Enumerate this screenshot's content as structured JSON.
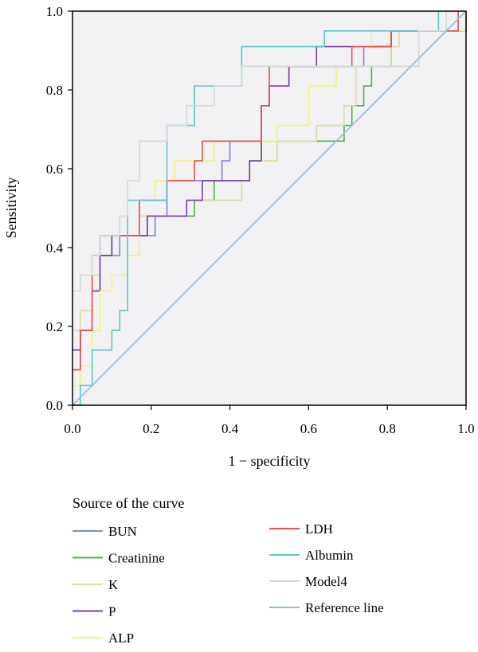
{
  "chart_data": {
    "type": "line",
    "title": "",
    "xlabel": "1 − specificity",
    "ylabel": "Sensitivity",
    "xlim": [
      0,
      1
    ],
    "ylim": [
      0,
      1
    ],
    "xticks": [
      "0.0",
      "0.2",
      "0.4",
      "0.6",
      "0.8",
      "1.0"
    ],
    "yticks": [
      "0.0",
      "0.2",
      "0.4",
      "0.6",
      "0.8",
      "1.0"
    ],
    "grid": false,
    "legend": {
      "title": "Source of the curve",
      "placement": "bottom"
    },
    "series": [
      {
        "name": "BUN",
        "color": "#7b88d6",
        "points": [
          [
            0,
            0.09
          ],
          [
            0.02,
            0.09
          ],
          [
            0.02,
            0.19
          ],
          [
            0.05,
            0.19
          ],
          [
            0.05,
            0.29
          ],
          [
            0.07,
            0.29
          ],
          [
            0.07,
            0.38
          ],
          [
            0.12,
            0.38
          ],
          [
            0.12,
            0.43
          ],
          [
            0.21,
            0.43
          ],
          [
            0.21,
            0.48
          ],
          [
            0.24,
            0.48
          ],
          [
            0.24,
            0.57
          ],
          [
            0.38,
            0.57
          ],
          [
            0.38,
            0.62
          ],
          [
            0.4,
            0.62
          ],
          [
            0.4,
            0.67
          ],
          [
            0.48,
            0.67
          ],
          [
            0.48,
            0.76
          ],
          [
            0.5,
            0.76
          ],
          [
            0.5,
            0.81
          ],
          [
            0.55,
            0.81
          ],
          [
            0.55,
            0.86
          ],
          [
            0.74,
            0.86
          ],
          [
            0.74,
            0.91
          ],
          [
            0.81,
            0.91
          ],
          [
            0.81,
            0.95
          ],
          [
            1,
            0.95
          ],
          [
            1,
            1
          ]
        ]
      },
      {
        "name": "Creatinine",
        "color": "#4fb34f",
        "points": [
          [
            0,
            0.14
          ],
          [
            0.02,
            0.14
          ],
          [
            0.02,
            0.19
          ],
          [
            0.05,
            0.19
          ],
          [
            0.05,
            0.29
          ],
          [
            0.07,
            0.29
          ],
          [
            0.07,
            0.38
          ],
          [
            0.1,
            0.38
          ],
          [
            0.1,
            0.43
          ],
          [
            0.19,
            0.43
          ],
          [
            0.19,
            0.48
          ],
          [
            0.31,
            0.48
          ],
          [
            0.31,
            0.52
          ],
          [
            0.36,
            0.52
          ],
          [
            0.36,
            0.57
          ],
          [
            0.45,
            0.57
          ],
          [
            0.45,
            0.62
          ],
          [
            0.48,
            0.62
          ],
          [
            0.48,
            0.67
          ],
          [
            0.69,
            0.67
          ],
          [
            0.69,
            0.71
          ],
          [
            0.71,
            0.71
          ],
          [
            0.71,
            0.76
          ],
          [
            0.74,
            0.76
          ],
          [
            0.74,
            0.81
          ],
          [
            0.76,
            0.81
          ],
          [
            0.76,
            0.86
          ],
          [
            0.81,
            0.86
          ],
          [
            0.81,
            0.95
          ],
          [
            1,
            0.95
          ],
          [
            1,
            1
          ]
        ]
      },
      {
        "name": "K",
        "color": "#d8dd9a",
        "points": [
          [
            0,
            0.19
          ],
          [
            0.02,
            0.19
          ],
          [
            0.02,
            0.24
          ],
          [
            0.05,
            0.24
          ],
          [
            0.05,
            0.33
          ],
          [
            0.07,
            0.33
          ],
          [
            0.07,
            0.43
          ],
          [
            0.17,
            0.43
          ],
          [
            0.17,
            0.48
          ],
          [
            0.29,
            0.48
          ],
          [
            0.29,
            0.52
          ],
          [
            0.43,
            0.52
          ],
          [
            0.43,
            0.57
          ],
          [
            0.45,
            0.57
          ],
          [
            0.45,
            0.62
          ],
          [
            0.52,
            0.62
          ],
          [
            0.52,
            0.67
          ],
          [
            0.62,
            0.67
          ],
          [
            0.62,
            0.71
          ],
          [
            0.69,
            0.71
          ],
          [
            0.69,
            0.76
          ],
          [
            0.72,
            0.76
          ],
          [
            0.72,
            0.86
          ],
          [
            0.81,
            0.86
          ],
          [
            0.81,
            0.91
          ],
          [
            0.83,
            0.91
          ],
          [
            0.83,
            0.95
          ],
          [
            1,
            0.95
          ],
          [
            1,
            1
          ]
        ]
      },
      {
        "name": "P",
        "color": "#7e3fa0",
        "points": [
          [
            0,
            0.14
          ],
          [
            0.02,
            0.14
          ],
          [
            0.02,
            0.19
          ],
          [
            0.05,
            0.19
          ],
          [
            0.05,
            0.29
          ],
          [
            0.07,
            0.29
          ],
          [
            0.07,
            0.38
          ],
          [
            0.1,
            0.38
          ],
          [
            0.1,
            0.43
          ],
          [
            0.19,
            0.43
          ],
          [
            0.19,
            0.48
          ],
          [
            0.29,
            0.48
          ],
          [
            0.29,
            0.52
          ],
          [
            0.33,
            0.52
          ],
          [
            0.33,
            0.57
          ],
          [
            0.45,
            0.57
          ],
          [
            0.45,
            0.62
          ],
          [
            0.48,
            0.62
          ],
          [
            0.48,
            0.76
          ],
          [
            0.5,
            0.76
          ],
          [
            0.5,
            0.81
          ],
          [
            0.55,
            0.81
          ],
          [
            0.55,
            0.86
          ],
          [
            0.62,
            0.86
          ],
          [
            0.62,
            0.91
          ],
          [
            0.81,
            0.91
          ],
          [
            0.81,
            0.95
          ],
          [
            1,
            0.95
          ],
          [
            1,
            1
          ]
        ]
      },
      {
        "name": "ALP",
        "color": "#f5f07a",
        "points": [
          [
            0,
            0.05
          ],
          [
            0.02,
            0.05
          ],
          [
            0.02,
            0.1
          ],
          [
            0.05,
            0.1
          ],
          [
            0.05,
            0.19
          ],
          [
            0.07,
            0.19
          ],
          [
            0.07,
            0.29
          ],
          [
            0.1,
            0.29
          ],
          [
            0.1,
            0.33
          ],
          [
            0.14,
            0.33
          ],
          [
            0.14,
            0.38
          ],
          [
            0.17,
            0.38
          ],
          [
            0.17,
            0.52
          ],
          [
            0.21,
            0.52
          ],
          [
            0.21,
            0.57
          ],
          [
            0.26,
            0.57
          ],
          [
            0.26,
            0.62
          ],
          [
            0.36,
            0.62
          ],
          [
            0.36,
            0.67
          ],
          [
            0.52,
            0.67
          ],
          [
            0.52,
            0.71
          ],
          [
            0.6,
            0.71
          ],
          [
            0.6,
            0.81
          ],
          [
            0.67,
            0.81
          ],
          [
            0.67,
            0.86
          ],
          [
            0.71,
            0.86
          ],
          [
            0.71,
            0.91
          ],
          [
            0.76,
            0.91
          ],
          [
            0.76,
            0.95
          ],
          [
            1,
            0.95
          ],
          [
            1,
            1
          ]
        ]
      },
      {
        "name": "LDH",
        "color": "#e8534f",
        "points": [
          [
            0,
            0.09
          ],
          [
            0.02,
            0.09
          ],
          [
            0.02,
            0.19
          ],
          [
            0.05,
            0.19
          ],
          [
            0.05,
            0.38
          ],
          [
            0.07,
            0.38
          ],
          [
            0.07,
            0.43
          ],
          [
            0.17,
            0.43
          ],
          [
            0.17,
            0.52
          ],
          [
            0.24,
            0.52
          ],
          [
            0.24,
            0.57
          ],
          [
            0.31,
            0.57
          ],
          [
            0.31,
            0.62
          ],
          [
            0.33,
            0.62
          ],
          [
            0.33,
            0.67
          ],
          [
            0.48,
            0.67
          ],
          [
            0.48,
            0.76
          ],
          [
            0.5,
            0.76
          ],
          [
            0.5,
            0.86
          ],
          [
            0.71,
            0.86
          ],
          [
            0.71,
            0.91
          ],
          [
            0.81,
            0.91
          ],
          [
            0.81,
            0.95
          ],
          [
            0.98,
            0.95
          ],
          [
            0.98,
            1
          ]
        ]
      },
      {
        "name": "Albumin",
        "color": "#5cc8c8",
        "points": [
          [
            0,
            0
          ],
          [
            0.02,
            0
          ],
          [
            0.02,
            0.05
          ],
          [
            0.05,
            0.05
          ],
          [
            0.05,
            0.14
          ],
          [
            0.1,
            0.14
          ],
          [
            0.1,
            0.19
          ],
          [
            0.12,
            0.19
          ],
          [
            0.12,
            0.24
          ],
          [
            0.14,
            0.24
          ],
          [
            0.14,
            0.52
          ],
          [
            0.24,
            0.52
          ],
          [
            0.24,
            0.71
          ],
          [
            0.31,
            0.71
          ],
          [
            0.31,
            0.81
          ],
          [
            0.43,
            0.81
          ],
          [
            0.43,
            0.91
          ],
          [
            0.64,
            0.91
          ],
          [
            0.64,
            0.95
          ],
          [
            0.93,
            0.95
          ],
          [
            0.93,
            1
          ]
        ]
      },
      {
        "name": "Model4",
        "color": "#d8d8d8",
        "points": [
          [
            0,
            0.29
          ],
          [
            0.02,
            0.29
          ],
          [
            0.02,
            0.33
          ],
          [
            0.05,
            0.33
          ],
          [
            0.05,
            0.38
          ],
          [
            0.07,
            0.38
          ],
          [
            0.07,
            0.43
          ],
          [
            0.12,
            0.43
          ],
          [
            0.12,
            0.48
          ],
          [
            0.14,
            0.48
          ],
          [
            0.14,
            0.57
          ],
          [
            0.17,
            0.57
          ],
          [
            0.17,
            0.67
          ],
          [
            0.24,
            0.67
          ],
          [
            0.24,
            0.71
          ],
          [
            0.29,
            0.71
          ],
          [
            0.29,
            0.76
          ],
          [
            0.36,
            0.76
          ],
          [
            0.36,
            0.81
          ],
          [
            0.43,
            0.81
          ],
          [
            0.43,
            0.86
          ],
          [
            0.48,
            0.86
          ],
          [
            0.48,
            0.86
          ],
          [
            0.88,
            0.86
          ],
          [
            0.88,
            0.95
          ],
          [
            0.95,
            0.95
          ],
          [
            0.95,
            1
          ]
        ]
      },
      {
        "name": "Reference line",
        "color": "#8fbde0",
        "points": [
          [
            0,
            0
          ],
          [
            1,
            1
          ]
        ]
      }
    ]
  }
}
